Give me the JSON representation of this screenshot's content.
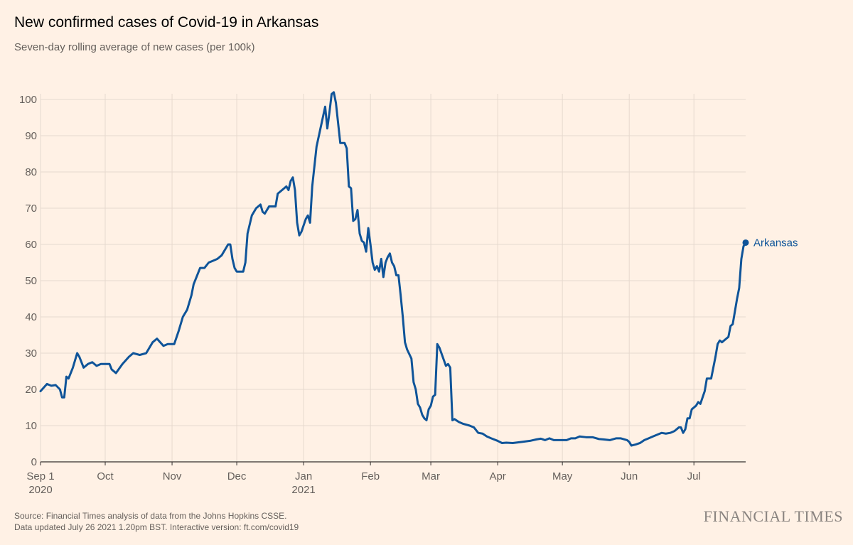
{
  "chart_data": {
    "type": "line",
    "title": "New confirmed cases of Covid-19 in Arkansas",
    "subtitle": "Seven-day rolling average of new cases (per 100k)",
    "xlabel": "",
    "ylabel": "",
    "x_range": [
      "2020-09-01",
      "2021-07-25"
    ],
    "ylim": [
      0,
      100
    ],
    "y_ticks": [
      0,
      10,
      20,
      30,
      40,
      50,
      60,
      70,
      80,
      90,
      100
    ],
    "x_ticks": [
      {
        "date": "2020-09-01",
        "label": "Sep 1",
        "sublabel": "2020"
      },
      {
        "date": "2020-10-01",
        "label": "Oct"
      },
      {
        "date": "2020-11-01",
        "label": "Nov"
      },
      {
        "date": "2020-12-01",
        "label": "Dec"
      },
      {
        "date": "2021-01-01",
        "label": "Jan",
        "sublabel": "2021"
      },
      {
        "date": "2021-02-01",
        "label": "Feb"
      },
      {
        "date": "2021-03-01",
        "label": "Mar"
      },
      {
        "date": "2021-04-01",
        "label": "Apr"
      },
      {
        "date": "2021-05-01",
        "label": "May"
      },
      {
        "date": "2021-06-01",
        "label": "Jun"
      },
      {
        "date": "2021-07-01",
        "label": "Jul"
      }
    ],
    "grid": "vertical-and-horizontal",
    "series": [
      {
        "name": "Arkansas",
        "color": "#0F5499",
        "end_label": "Arkansas",
        "points": [
          [
            "2020-09-01",
            19.5
          ],
          [
            "2020-09-04",
            21.5
          ],
          [
            "2020-09-06",
            21.0
          ],
          [
            "2020-09-08",
            21.2
          ],
          [
            "2020-09-10",
            20.0
          ],
          [
            "2020-09-11",
            17.8
          ],
          [
            "2020-09-12",
            17.8
          ],
          [
            "2020-09-13",
            23.5
          ],
          [
            "2020-09-14",
            23.0
          ],
          [
            "2020-09-16",
            26.0
          ],
          [
            "2020-09-17",
            28.0
          ],
          [
            "2020-09-18",
            30.0
          ],
          [
            "2020-09-19",
            29.0
          ],
          [
            "2020-09-21",
            26.0
          ],
          [
            "2020-09-23",
            27.0
          ],
          [
            "2020-09-25",
            27.5
          ],
          [
            "2020-09-27",
            26.5
          ],
          [
            "2020-09-29",
            27.0
          ],
          [
            "2020-10-03",
            27.0
          ],
          [
            "2020-10-04",
            25.5
          ],
          [
            "2020-10-06",
            24.5
          ],
          [
            "2020-10-09",
            27.0
          ],
          [
            "2020-10-12",
            29.0
          ],
          [
            "2020-10-14",
            30.0
          ],
          [
            "2020-10-17",
            29.5
          ],
          [
            "2020-10-20",
            30.0
          ],
          [
            "2020-10-23",
            33.0
          ],
          [
            "2020-10-25",
            34.0
          ],
          [
            "2020-10-28",
            32.0
          ],
          [
            "2020-10-30",
            32.5
          ],
          [
            "2020-11-02",
            32.5
          ],
          [
            "2020-11-04",
            36.0
          ],
          [
            "2020-11-06",
            40.0
          ],
          [
            "2020-11-08",
            42.0
          ],
          [
            "2020-11-10",
            46.0
          ],
          [
            "2020-11-11",
            49.0
          ],
          [
            "2020-11-13",
            52.0
          ],
          [
            "2020-11-14",
            53.5
          ],
          [
            "2020-11-16",
            53.5
          ],
          [
            "2020-11-18",
            55.0
          ],
          [
            "2020-11-20",
            55.5
          ],
          [
            "2020-11-22",
            56.0
          ],
          [
            "2020-11-24",
            57.0
          ],
          [
            "2020-11-27",
            60.0
          ],
          [
            "2020-11-28",
            60.0
          ],
          [
            "2020-11-29",
            56.0
          ],
          [
            "2020-11-30",
            53.5
          ],
          [
            "2020-12-01",
            52.5
          ],
          [
            "2020-12-04",
            52.5
          ],
          [
            "2020-12-05",
            55.0
          ],
          [
            "2020-12-06",
            63.0
          ],
          [
            "2020-12-08",
            68.0
          ],
          [
            "2020-12-10",
            70.0
          ],
          [
            "2020-12-12",
            71.0
          ],
          [
            "2020-12-13",
            69.0
          ],
          [
            "2020-12-14",
            68.5
          ],
          [
            "2020-12-16",
            70.5
          ],
          [
            "2020-12-18",
            70.5
          ],
          [
            "2020-12-19",
            70.5
          ],
          [
            "2020-12-20",
            74.0
          ],
          [
            "2020-12-22",
            75.0
          ],
          [
            "2020-12-24",
            76.0
          ],
          [
            "2020-12-25",
            75.0
          ],
          [
            "2020-12-26",
            77.5
          ],
          [
            "2020-12-27",
            78.5
          ],
          [
            "2020-12-28",
            75.0
          ],
          [
            "2020-12-29",
            66.0
          ],
          [
            "2020-12-30",
            62.5
          ],
          [
            "2020-12-31",
            63.5
          ],
          [
            "2021-01-02",
            67.0
          ],
          [
            "2021-01-03",
            68.0
          ],
          [
            "2021-01-04",
            66.0
          ],
          [
            "2021-01-05",
            76.0
          ],
          [
            "2021-01-07",
            87.0
          ],
          [
            "2021-01-09",
            92.5
          ],
          [
            "2021-01-11",
            98.0
          ],
          [
            "2021-01-12",
            92.0
          ],
          [
            "2021-01-13",
            96.5
          ],
          [
            "2021-01-14",
            101.5
          ],
          [
            "2021-01-15",
            102.0
          ],
          [
            "2021-01-16",
            99.0
          ],
          [
            "2021-01-18",
            88.0
          ],
          [
            "2021-01-20",
            88.0
          ],
          [
            "2021-01-21",
            86.5
          ],
          [
            "2021-01-22",
            76.0
          ],
          [
            "2021-01-23",
            75.5
          ],
          [
            "2021-01-24",
            66.5
          ],
          [
            "2021-01-25",
            67.0
          ],
          [
            "2021-01-26",
            69.5
          ],
          [
            "2021-01-27",
            63.0
          ],
          [
            "2021-01-28",
            61.0
          ],
          [
            "2021-01-29",
            60.5
          ],
          [
            "2021-01-30",
            58.0
          ],
          [
            "2021-01-31",
            64.5
          ],
          [
            "2021-02-01",
            60.0
          ],
          [
            "2021-02-02",
            55.0
          ],
          [
            "2021-02-03",
            53.0
          ],
          [
            "2021-02-04",
            54.0
          ],
          [
            "2021-02-05",
            52.5
          ],
          [
            "2021-02-06",
            56.0
          ],
          [
            "2021-02-07",
            51.0
          ],
          [
            "2021-02-08",
            55.0
          ],
          [
            "2021-02-09",
            56.5
          ],
          [
            "2021-02-10",
            57.5
          ],
          [
            "2021-02-11",
            55.0
          ],
          [
            "2021-02-12",
            54.0
          ],
          [
            "2021-02-13",
            51.5
          ],
          [
            "2021-02-14",
            51.5
          ],
          [
            "2021-02-15",
            46.0
          ],
          [
            "2021-02-16",
            40.0
          ],
          [
            "2021-02-17",
            33.0
          ],
          [
            "2021-02-18",
            31.0
          ],
          [
            "2021-02-20",
            28.5
          ],
          [
            "2021-02-21",
            22.0
          ],
          [
            "2021-02-22",
            20.0
          ],
          [
            "2021-02-23",
            16.0
          ],
          [
            "2021-02-24",
            15.0
          ],
          [
            "2021-02-25",
            13.0
          ],
          [
            "2021-02-26",
            12.0
          ],
          [
            "2021-02-27",
            11.5
          ],
          [
            "2021-02-28",
            14.5
          ],
          [
            "2021-03-01",
            15.5
          ],
          [
            "2021-03-02",
            18.0
          ],
          [
            "2021-03-03",
            18.5
          ],
          [
            "2021-03-04",
            32.5
          ],
          [
            "2021-03-05",
            31.5
          ],
          [
            "2021-03-08",
            26.5
          ],
          [
            "2021-03-09",
            27.0
          ],
          [
            "2021-03-10",
            26.0
          ],
          [
            "2021-03-11",
            11.5
          ],
          [
            "2021-03-12",
            11.8
          ],
          [
            "2021-03-14",
            11.0
          ],
          [
            "2021-03-16",
            10.5
          ],
          [
            "2021-03-19",
            10.0
          ],
          [
            "2021-03-21",
            9.5
          ],
          [
            "2021-03-23",
            8.0
          ],
          [
            "2021-03-25",
            7.8
          ],
          [
            "2021-03-27",
            7.0
          ],
          [
            "2021-03-29",
            6.5
          ],
          [
            "2021-04-01",
            5.8
          ],
          [
            "2021-04-03",
            5.2
          ],
          [
            "2021-04-05",
            5.3
          ],
          [
            "2021-04-08",
            5.2
          ],
          [
            "2021-04-12",
            5.5
          ],
          [
            "2021-04-16",
            5.8
          ],
          [
            "2021-04-19",
            6.2
          ],
          [
            "2021-04-21",
            6.4
          ],
          [
            "2021-04-23",
            6.0
          ],
          [
            "2021-04-25",
            6.5
          ],
          [
            "2021-04-27",
            6.0
          ],
          [
            "2021-04-30",
            6.0
          ],
          [
            "2021-05-03",
            6.0
          ],
          [
            "2021-05-05",
            6.5
          ],
          [
            "2021-05-07",
            6.5
          ],
          [
            "2021-05-09",
            7.0
          ],
          [
            "2021-05-12",
            6.8
          ],
          [
            "2021-05-15",
            6.8
          ],
          [
            "2021-05-18",
            6.3
          ],
          [
            "2021-05-20",
            6.2
          ],
          [
            "2021-05-23",
            6.0
          ],
          [
            "2021-05-26",
            6.5
          ],
          [
            "2021-05-28",
            6.5
          ],
          [
            "2021-05-31",
            6.0
          ],
          [
            "2021-06-01",
            5.5
          ],
          [
            "2021-06-02",
            4.5
          ],
          [
            "2021-06-04",
            4.8
          ],
          [
            "2021-06-06",
            5.2
          ],
          [
            "2021-06-08",
            6.0
          ],
          [
            "2021-06-10",
            6.5
          ],
          [
            "2021-06-12",
            7.0
          ],
          [
            "2021-06-14",
            7.5
          ],
          [
            "2021-06-16",
            8.0
          ],
          [
            "2021-06-18",
            7.8
          ],
          [
            "2021-06-20",
            8.0
          ],
          [
            "2021-06-22",
            8.5
          ],
          [
            "2021-06-24",
            9.5
          ],
          [
            "2021-06-25",
            9.5
          ],
          [
            "2021-06-26",
            8.0
          ],
          [
            "2021-06-27",
            9.0
          ],
          [
            "2021-06-28",
            12.0
          ],
          [
            "2021-06-29",
            12.0
          ],
          [
            "2021-06-30",
            14.5
          ],
          [
            "2021-07-02",
            15.5
          ],
          [
            "2021-07-03",
            16.5
          ],
          [
            "2021-07-04",
            16.0
          ],
          [
            "2021-07-06",
            19.5
          ],
          [
            "2021-07-07",
            23.0
          ],
          [
            "2021-07-09",
            23.0
          ],
          [
            "2021-07-11",
            29.0
          ],
          [
            "2021-07-12",
            32.5
          ],
          [
            "2021-07-13",
            33.5
          ],
          [
            "2021-07-14",
            33.0
          ],
          [
            "2021-07-16",
            34.0
          ],
          [
            "2021-07-17",
            34.5
          ],
          [
            "2021-07-18",
            37.5
          ],
          [
            "2021-07-19",
            38.0
          ],
          [
            "2021-07-21",
            45.0
          ],
          [
            "2021-07-22",
            48.0
          ],
          [
            "2021-07-23",
            56.0
          ],
          [
            "2021-07-24",
            59.5
          ],
          [
            "2021-07-25",
            60.5
          ]
        ]
      }
    ]
  },
  "footer": {
    "source_line1": "Source: Financial Times analysis of data from the Johns Hopkins CSSE.",
    "source_line2": "Data updated July 26 2021 1.20pm BST. Interactive version: ft.com/covid19",
    "brand": "FINANCIAL TIMES"
  }
}
